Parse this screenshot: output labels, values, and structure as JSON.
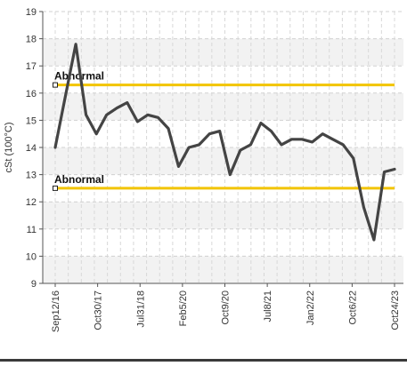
{
  "chart_data": {
    "type": "line",
    "title": "",
    "xlabel": "",
    "ylabel": "cSt (100°C)",
    "ylim": [
      9,
      19
    ],
    "y_ticks": [
      9,
      10,
      11,
      12,
      13,
      14,
      15,
      16,
      17,
      18,
      19
    ],
    "grid": true,
    "x_tick_labels": [
      "Sep12/16",
      "Oct30/17",
      "Jul31/18",
      "Feb5/20",
      "Oct9/20",
      "Jul8/21",
      "Jan2/22",
      "Oct6/22",
      "Oct24/23"
    ],
    "series": [
      {
        "color": "#444444",
        "values": [
          14.0,
          15.9,
          17.8,
          15.2,
          14.5,
          15.2,
          15.45,
          15.65,
          14.95,
          15.2,
          15.1,
          14.7,
          13.3,
          14.0,
          14.1,
          14.5,
          14.6,
          13.0,
          13.9,
          14.1,
          14.9,
          14.6,
          14.1,
          14.3,
          14.3,
          14.2,
          14.5,
          14.3,
          14.1,
          13.6,
          11.8,
          10.6,
          13.1,
          13.2
        ]
      }
    ],
    "reference_lines": [
      {
        "label": "Abnormal",
        "value": 16.3,
        "color": "#f2c400"
      },
      {
        "label": "Abnormal",
        "value": 12.5,
        "color": "#f2c400"
      }
    ]
  }
}
